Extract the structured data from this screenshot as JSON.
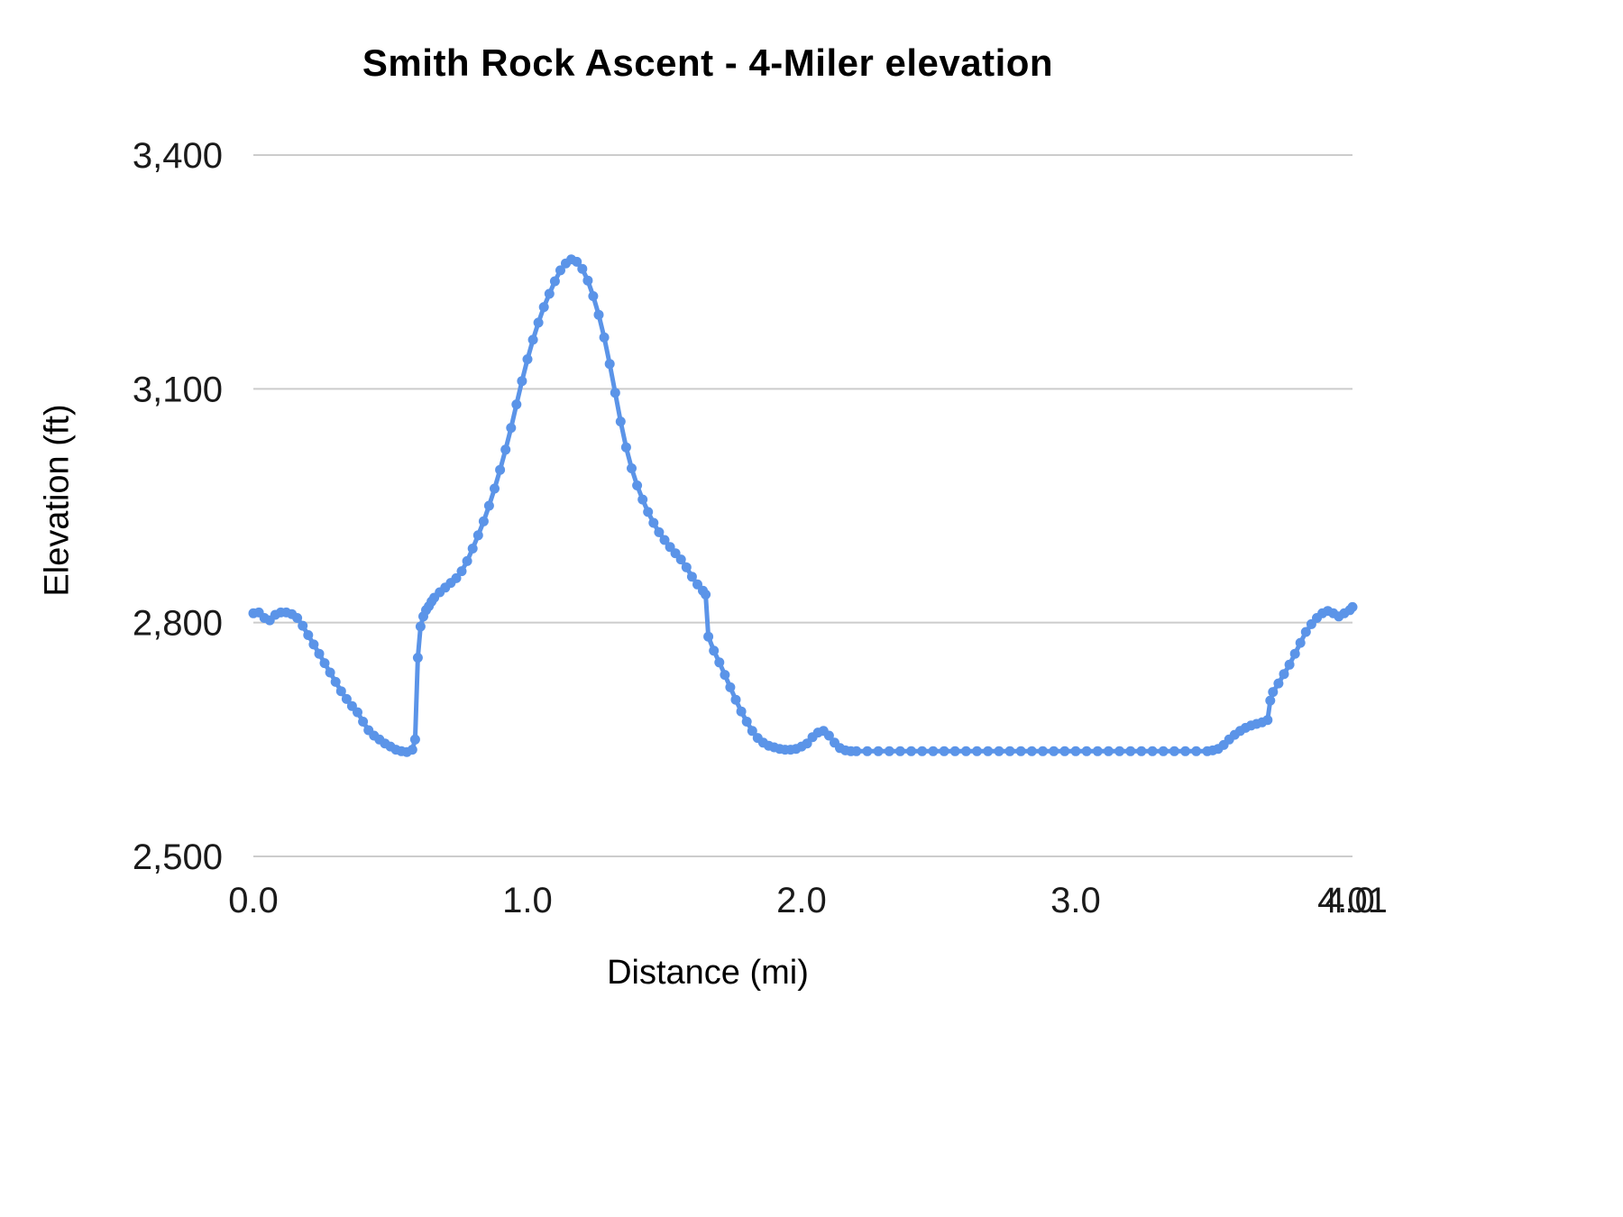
{
  "chart_data": {
    "type": "line",
    "title": "Smith Rock Ascent - 4-Miler elevation",
    "xlabel": "Distance (mi)",
    "ylabel": "Elevation (ft)",
    "xlim": [
      0,
      4.01
    ],
    "ylim": [
      2500,
      3400
    ],
    "grid": "horizontal-only",
    "legend": "none",
    "line_color": "#5b94e8",
    "gridline_color": "#cccccc",
    "marker": "circle",
    "y_ticks": [
      {
        "value": 2500,
        "label": "2,500"
      },
      {
        "value": 2800,
        "label": "2,800"
      },
      {
        "value": 3100,
        "label": "3,100"
      },
      {
        "value": 3400,
        "label": "3,400"
      }
    ],
    "x_ticks": [
      {
        "value": 0.0,
        "label": "0.0"
      },
      {
        "value": 1.0,
        "label": "1.0"
      },
      {
        "value": 2.0,
        "label": "2.0"
      },
      {
        "value": 3.0,
        "label": "3.0"
      },
      {
        "value": 4.0,
        "label": "4.0"
      },
      {
        "value": 4.01,
        "label": "4.01"
      }
    ],
    "series": [
      {
        "name": "elevation",
        "points": [
          [
            0.0,
            2812
          ],
          [
            0.02,
            2813
          ],
          [
            0.04,
            2806
          ],
          [
            0.06,
            2803
          ],
          [
            0.08,
            2810
          ],
          [
            0.1,
            2813
          ],
          [
            0.12,
            2813
          ],
          [
            0.14,
            2811
          ],
          [
            0.16,
            2806
          ],
          [
            0.18,
            2796
          ],
          [
            0.2,
            2784
          ],
          [
            0.22,
            2772
          ],
          [
            0.24,
            2760
          ],
          [
            0.26,
            2748
          ],
          [
            0.28,
            2736
          ],
          [
            0.3,
            2724
          ],
          [
            0.32,
            2712
          ],
          [
            0.34,
            2702
          ],
          [
            0.36,
            2693
          ],
          [
            0.38,
            2685
          ],
          [
            0.4,
            2673
          ],
          [
            0.42,
            2662
          ],
          [
            0.44,
            2655
          ],
          [
            0.46,
            2650
          ],
          [
            0.48,
            2645
          ],
          [
            0.5,
            2641
          ],
          [
            0.52,
            2637
          ],
          [
            0.54,
            2635
          ],
          [
            0.56,
            2634
          ],
          [
            0.58,
            2637
          ],
          [
            0.59,
            2650
          ],
          [
            0.6,
            2755
          ],
          [
            0.61,
            2795
          ],
          [
            0.62,
            2808
          ],
          [
            0.63,
            2816
          ],
          [
            0.64,
            2821
          ],
          [
            0.65,
            2827
          ],
          [
            0.66,
            2832
          ],
          [
            0.68,
            2839
          ],
          [
            0.7,
            2845
          ],
          [
            0.72,
            2851
          ],
          [
            0.74,
            2857
          ],
          [
            0.76,
            2866
          ],
          [
            0.78,
            2879
          ],
          [
            0.8,
            2895
          ],
          [
            0.82,
            2912
          ],
          [
            0.84,
            2930
          ],
          [
            0.86,
            2950
          ],
          [
            0.88,
            2972
          ],
          [
            0.9,
            2996
          ],
          [
            0.92,
            3022
          ],
          [
            0.94,
            3050
          ],
          [
            0.96,
            3080
          ],
          [
            0.98,
            3110
          ],
          [
            1.0,
            3138
          ],
          [
            1.02,
            3163
          ],
          [
            1.04,
            3185
          ],
          [
            1.06,
            3205
          ],
          [
            1.08,
            3222
          ],
          [
            1.1,
            3238
          ],
          [
            1.12,
            3252
          ],
          [
            1.14,
            3261
          ],
          [
            1.16,
            3266
          ],
          [
            1.18,
            3263
          ],
          [
            1.2,
            3254
          ],
          [
            1.22,
            3239
          ],
          [
            1.24,
            3219
          ],
          [
            1.26,
            3195
          ],
          [
            1.28,
            3166
          ],
          [
            1.3,
            3132
          ],
          [
            1.32,
            3095
          ],
          [
            1.34,
            3058
          ],
          [
            1.36,
            3025
          ],
          [
            1.38,
            2998
          ],
          [
            1.4,
            2976
          ],
          [
            1.42,
            2958
          ],
          [
            1.44,
            2942
          ],
          [
            1.46,
            2928
          ],
          [
            1.48,
            2916
          ],
          [
            1.5,
            2906
          ],
          [
            1.52,
            2897
          ],
          [
            1.54,
            2889
          ],
          [
            1.56,
            2881
          ],
          [
            1.58,
            2871
          ],
          [
            1.6,
            2859
          ],
          [
            1.62,
            2849
          ],
          [
            1.64,
            2841
          ],
          [
            1.65,
            2836
          ],
          [
            1.66,
            2782
          ],
          [
            1.68,
            2764
          ],
          [
            1.7,
            2749
          ],
          [
            1.72,
            2733
          ],
          [
            1.74,
            2717
          ],
          [
            1.76,
            2701
          ],
          [
            1.78,
            2686
          ],
          [
            1.8,
            2673
          ],
          [
            1.82,
            2661
          ],
          [
            1.84,
            2652
          ],
          [
            1.86,
            2646
          ],
          [
            1.88,
            2642
          ],
          [
            1.9,
            2640
          ],
          [
            1.92,
            2638
          ],
          [
            1.94,
            2637
          ],
          [
            1.96,
            2637
          ],
          [
            1.98,
            2638
          ],
          [
            2.0,
            2641
          ],
          [
            2.02,
            2645
          ],
          [
            2.04,
            2653
          ],
          [
            2.06,
            2659
          ],
          [
            2.08,
            2661
          ],
          [
            2.1,
            2655
          ],
          [
            2.12,
            2646
          ],
          [
            2.14,
            2639
          ],
          [
            2.16,
            2636
          ],
          [
            2.18,
            2635
          ],
          [
            2.2,
            2635
          ],
          [
            2.24,
            2635
          ],
          [
            2.28,
            2635
          ],
          [
            2.32,
            2635
          ],
          [
            2.36,
            2635
          ],
          [
            2.4,
            2635
          ],
          [
            2.44,
            2635
          ],
          [
            2.48,
            2635
          ],
          [
            2.52,
            2635
          ],
          [
            2.56,
            2635
          ],
          [
            2.6,
            2635
          ],
          [
            2.64,
            2635
          ],
          [
            2.68,
            2635
          ],
          [
            2.72,
            2635
          ],
          [
            2.76,
            2635
          ],
          [
            2.8,
            2635
          ],
          [
            2.84,
            2635
          ],
          [
            2.88,
            2635
          ],
          [
            2.92,
            2635
          ],
          [
            2.96,
            2635
          ],
          [
            3.0,
            2635
          ],
          [
            3.04,
            2635
          ],
          [
            3.08,
            2635
          ],
          [
            3.12,
            2635
          ],
          [
            3.16,
            2635
          ],
          [
            3.2,
            2635
          ],
          [
            3.24,
            2635
          ],
          [
            3.28,
            2635
          ],
          [
            3.32,
            2635
          ],
          [
            3.36,
            2635
          ],
          [
            3.4,
            2635
          ],
          [
            3.44,
            2635
          ],
          [
            3.48,
            2635
          ],
          [
            3.5,
            2636
          ],
          [
            3.52,
            2638
          ],
          [
            3.54,
            2643
          ],
          [
            3.56,
            2650
          ],
          [
            3.58,
            2656
          ],
          [
            3.6,
            2661
          ],
          [
            3.62,
            2665
          ],
          [
            3.64,
            2668
          ],
          [
            3.66,
            2670
          ],
          [
            3.68,
            2672
          ],
          [
            3.7,
            2675
          ],
          [
            3.71,
            2700
          ],
          [
            3.72,
            2711
          ],
          [
            3.74,
            2722
          ],
          [
            3.76,
            2734
          ],
          [
            3.78,
            2746
          ],
          [
            3.8,
            2760
          ],
          [
            3.82,
            2774
          ],
          [
            3.84,
            2788
          ],
          [
            3.86,
            2798
          ],
          [
            3.88,
            2806
          ],
          [
            3.9,
            2812
          ],
          [
            3.92,
            2815
          ],
          [
            3.94,
            2812
          ],
          [
            3.96,
            2808
          ],
          [
            3.98,
            2812
          ],
          [
            4.0,
            2816
          ],
          [
            4.01,
            2820
          ]
        ]
      }
    ]
  }
}
